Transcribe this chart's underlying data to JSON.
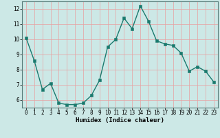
{
  "x": [
    0,
    1,
    2,
    3,
    4,
    5,
    6,
    7,
    8,
    9,
    10,
    11,
    12,
    13,
    14,
    15,
    16,
    17,
    18,
    19,
    20,
    21,
    22,
    23
  ],
  "y": [
    10.1,
    8.6,
    6.7,
    7.1,
    5.8,
    5.7,
    5.7,
    5.8,
    6.3,
    7.3,
    9.5,
    10.0,
    11.4,
    10.7,
    12.2,
    11.2,
    9.9,
    9.7,
    9.6,
    9.1,
    7.9,
    8.2,
    7.9,
    7.2
  ],
  "line_color": "#1a7a6e",
  "marker_color": "#1a7a6e",
  "bg_color": "#cce8e6",
  "grid_color": "#e8a0a0",
  "xlabel": "Humidex (Indice chaleur)",
  "ylim": [
    5.5,
    12.5
  ],
  "xlim": [
    -0.5,
    23.5
  ],
  "yticks": [
    6,
    7,
    8,
    9,
    10,
    11,
    12
  ],
  "xticks": [
    0,
    1,
    2,
    3,
    4,
    5,
    6,
    7,
    8,
    9,
    10,
    11,
    12,
    13,
    14,
    15,
    16,
    17,
    18,
    19,
    20,
    21,
    22,
    23
  ],
  "label_fontsize": 6.5,
  "tick_fontsize": 5.5,
  "linewidth": 1.0,
  "markersize": 2.5
}
